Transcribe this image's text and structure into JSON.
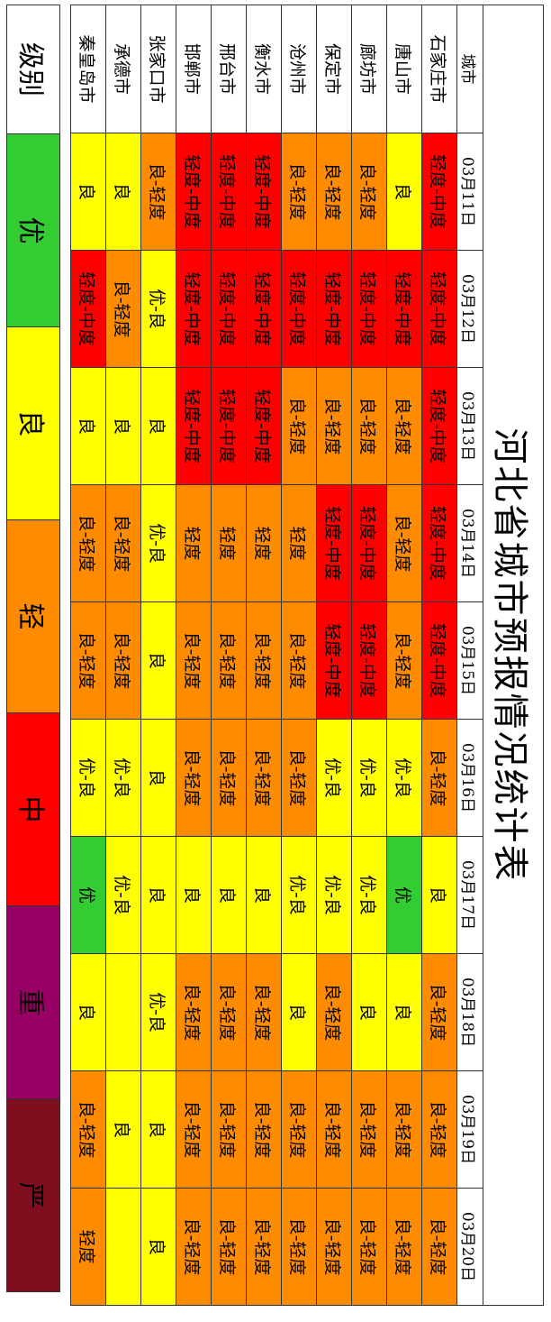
{
  "table": {
    "title": "河北省城市预报情况统计表",
    "header": [
      "城市",
      "03月11日",
      "03月12日",
      "03月13日",
      "03月14日",
      "03月15日",
      "03月16日",
      "03月17日",
      "03月18日",
      "03月19日",
      "03月20日"
    ],
    "rows": [
      {
        "cells": [
          "石家庄市",
          "轻度-中度",
          "轻度-中度",
          "轻度-中度",
          "轻度-中度",
          "轻度-中度",
          "良-轻度",
          "良",
          "良-轻度",
          "良-轻度",
          "良-轻度"
        ],
        "colors": [
          "#ff0000",
          "#ff0000",
          "#ff0000",
          "#ff0000",
          "#ff0000",
          "#ff8c00",
          "#ffff00",
          "#ff8c00",
          "#ff8c00",
          "#ff8c00"
        ]
      },
      {
        "cells": [
          "唐山市",
          "良",
          "轻度-中度",
          "良-轻度",
          "良-轻度",
          "良-轻度",
          "优-良",
          "优",
          "良",
          "良-轻度",
          "良-轻度"
        ],
        "colors": [
          "#ffff00",
          "#ff0000",
          "#ff8c00",
          "#ff8c00",
          "#ff8c00",
          "#ffff00",
          "#33cc33",
          "#ffff00",
          "#ff8c00",
          "#ff8c00"
        ]
      },
      {
        "cells": [
          "廊坊市",
          "良-轻度",
          "轻度-中度",
          "良-轻度",
          "轻度-中度",
          "轻度-中度",
          "优-良",
          "优-良",
          "良",
          "良-轻度",
          "良-轻度"
        ],
        "colors": [
          "#ff8c00",
          "#ff0000",
          "#ff8c00",
          "#ff0000",
          "#ff0000",
          "#ffff00",
          "#ffff00",
          "#ffff00",
          "#ff8c00",
          "#ff8c00"
        ]
      },
      {
        "cells": [
          "保定市",
          "良-轻度",
          "轻度-中度",
          "良-轻度",
          "轻度-中度",
          "轻度-中度",
          "优-良",
          "优-良",
          "良-轻度",
          "良-轻度",
          "良-轻度"
        ],
        "colors": [
          "#ff8c00",
          "#ff0000",
          "#ff8c00",
          "#ff0000",
          "#ff0000",
          "#ffff00",
          "#ffff00",
          "#ff8c00",
          "#ff8c00",
          "#ff8c00"
        ]
      },
      {
        "cells": [
          "沧州市",
          "良-轻度",
          "轻度-中度",
          "良-轻度",
          "轻度",
          "良-轻度",
          "良-轻度",
          "优-良",
          "良",
          "良-轻度",
          "良-轻度"
        ],
        "colors": [
          "#ff8c00",
          "#ff0000",
          "#ff8c00",
          "#ff8c00",
          "#ff8c00",
          "#ff8c00",
          "#ffff00",
          "#ffff00",
          "#ff8c00",
          "#ff8c00"
        ]
      },
      {
        "cells": [
          "衡水市",
          "轻度-中度",
          "轻度-中度",
          "轻度-中度",
          "轻度",
          "良-轻度",
          "良-轻度",
          "良",
          "良-轻度",
          "良-轻度",
          "良-轻度"
        ],
        "colors": [
          "#ff0000",
          "#ff0000",
          "#ff0000",
          "#ff8c00",
          "#ff8c00",
          "#ff8c00",
          "#ffff00",
          "#ff8c00",
          "#ff8c00",
          "#ff8c00"
        ]
      },
      {
        "cells": [
          "邢台市",
          "轻度-中度",
          "轻度-中度",
          "轻度-中度",
          "轻度",
          "良-轻度",
          "良-轻度",
          "良",
          "良-轻度",
          "良-轻度",
          "良-轻度"
        ],
        "colors": [
          "#ff0000",
          "#ff0000",
          "#ff0000",
          "#ff8c00",
          "#ff8c00",
          "#ff8c00",
          "#ffff00",
          "#ff8c00",
          "#ff8c00",
          "#ff8c00"
        ]
      },
      {
        "cells": [
          "邯郸市",
          "轻度-中度",
          "轻度-中度",
          "轻度-中度",
          "轻度",
          "良-轻度",
          "良-轻度",
          "良",
          "良-轻度",
          "良-轻度",
          "良-轻度"
        ],
        "colors": [
          "#ff0000",
          "#ff0000",
          "#ff0000",
          "#ff8c00",
          "#ff8c00",
          "#ff8c00",
          "#ffff00",
          "#ff8c00",
          "#ff8c00",
          "#ff8c00"
        ]
      },
      {
        "cells": [
          "张家口市",
          "良-轻度",
          "优-良",
          "良",
          "优-良",
          "良",
          "良",
          "良",
          "优-良",
          "良",
          "良"
        ],
        "colors": [
          "#ff8c00",
          "#ffff00",
          "#ffff00",
          "#ffff00",
          "#ffff00",
          "#ffff00",
          "#ffff00",
          "#ffff00",
          "#ffff00",
          "#ffff00"
        ]
      },
      {
        "cells": [
          "承德市",
          "良",
          "良-轻度",
          "良",
          "良-轻度",
          "良-轻度",
          "优-良",
          "优-良",
          null,
          "良",
          null
        ],
        "colors": [
          "#ffff00",
          "#ff8c00",
          "#ffff00",
          "#ff8c00",
          "#ff8c00",
          "#ffff00",
          "#ffff00",
          "#ffff00",
          "#ffff00",
          "#ffff00"
        ]
      },
      {
        "cells": [
          "秦皇岛市",
          "良",
          "轻度-中度",
          "良",
          "良-轻度",
          "良-轻度",
          "优-良",
          "优",
          "良",
          "良-轻度",
          "轻度"
        ],
        "colors": [
          "#ffff00",
          "#ff0000",
          "#ffff00",
          "#ff8c00",
          "#ff8c00",
          "#ffff00",
          "#33cc33",
          "#ffff00",
          "#ff8c00",
          "#ff8c00"
        ]
      }
    ]
  },
  "legend": {
    "items": [
      {
        "label": "级别",
        "color": "#ffffff"
      },
      {
        "label": "优",
        "color": "#33cc33"
      },
      {
        "label": "良",
        "color": "#ffff00"
      },
      {
        "label": "轻",
        "color": "#ff8c00"
      },
      {
        "label": "中",
        "color": "#ff0000"
      },
      {
        "label": "重",
        "color": "#990066"
      },
      {
        "label": "严",
        "color": "#7f0f1f"
      }
    ]
  }
}
